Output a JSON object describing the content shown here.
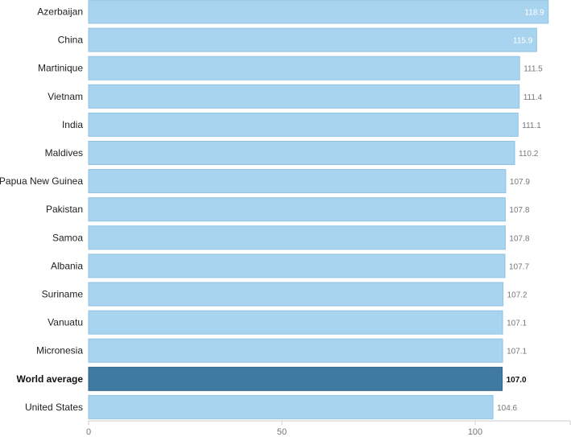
{
  "chart_data": {
    "type": "bar",
    "orientation": "horizontal",
    "categories": [
      "Azerbaijan",
      "China",
      "Martinique",
      "Vietnam",
      "India",
      "Maldives",
      "Papua New Guinea",
      "Pakistan",
      "Samoa",
      "Albania",
      "Suriname",
      "Vanuatu",
      "Micronesia",
      "World average",
      "United States"
    ],
    "values": [
      118.9,
      115.9,
      111.5,
      111.4,
      111.1,
      110.2,
      107.9,
      107.8,
      107.8,
      107.7,
      107.2,
      107.1,
      107.1,
      107.0,
      104.6
    ],
    "value_labels": [
      "118.9",
      "115.9",
      "111.5",
      "111.4",
      "111.1",
      "110.2",
      "107.9",
      "107.8",
      "107.8",
      "107.7",
      "107.2",
      "107.1",
      "107.1",
      "107.0",
      "104.6"
    ],
    "highlight": "World average",
    "xlim": [
      0,
      125
    ],
    "xticks": [
      0,
      50,
      100
    ],
    "xtick_labels": [
      "0",
      "50",
      "100"
    ],
    "grid": false,
    "colors": {
      "bar": "#a8d4ef",
      "bar_edge": "#8fc2e2",
      "highlight_bar": "#3f7aa3",
      "highlight_edge": "#2f6285",
      "axis": "#cccccc"
    }
  }
}
